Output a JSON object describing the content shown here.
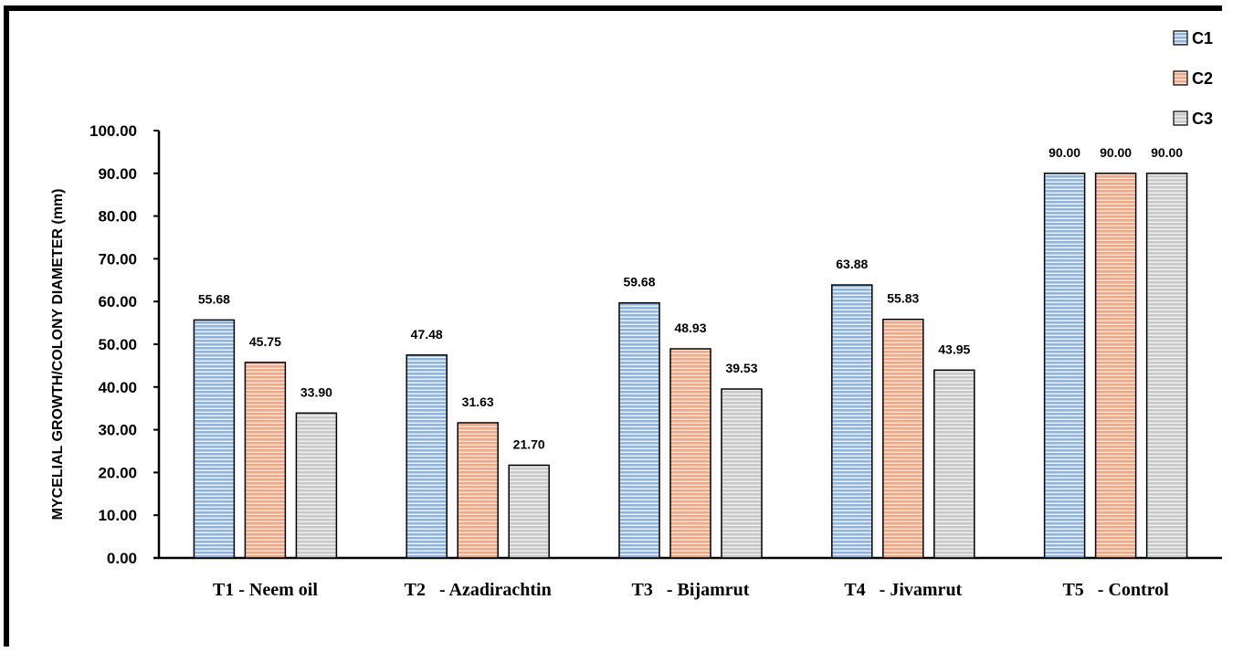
{
  "chart_data": {
    "type": "bar",
    "title": "",
    "xlabel": "",
    "ylabel": "MYCELIAL GROWTH/COLONY DIAMETER (mm)",
    "ylim": [
      0,
      100
    ],
    "yticks": [
      "0.00",
      "10.00",
      "20.00",
      "30.00",
      "40.00",
      "50.00",
      "60.00",
      "70.00",
      "80.00",
      "90.00",
      "100.00"
    ],
    "categories": [
      "T1 - Neem oil",
      "T2   - Azadirachtin",
      "T3   - Bijamrut",
      "T4   - Jivamrut",
      "T5   - Control"
    ],
    "series": [
      {
        "name": "C1",
        "color": "#8db4e2",
        "values": [
          55.68,
          47.48,
          59.68,
          63.88,
          90.0
        ],
        "labels": [
          "55.68",
          "47.48",
          "59.68",
          "63.88",
          "90.00"
        ]
      },
      {
        "name": "C2",
        "color": "#f4a582",
        "values": [
          45.75,
          31.63,
          48.93,
          55.83,
          90.0
        ],
        "labels": [
          "45.75",
          "31.63",
          "48.93",
          "55.83",
          "90.00"
        ]
      },
      {
        "name": "C3",
        "color": "#c8c8c8",
        "values": [
          33.9,
          21.7,
          39.53,
          43.95,
          90.0
        ],
        "labels": [
          "33.90",
          "21.70",
          "39.53",
          "43.95",
          "90.00"
        ]
      }
    ],
    "legend": "top-right",
    "grid": false
  }
}
